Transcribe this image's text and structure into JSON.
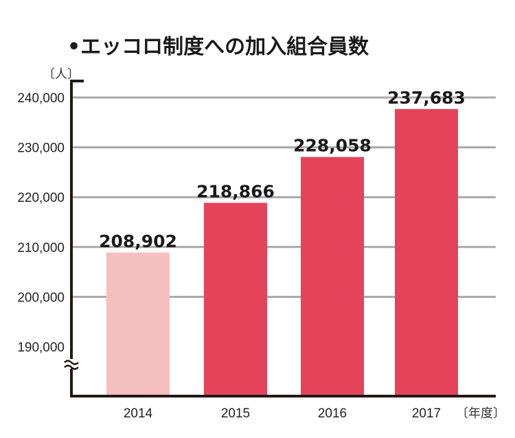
{
  "chart_data": {
    "type": "bar",
    "title": "•エッコロ制度への加入組合員数",
    "ylabel": "〔人〕",
    "xlabel": "〔年度〕",
    "categories": [
      "2014",
      "2015",
      "2016",
      "2017"
    ],
    "values": [
      208902,
      218866,
      228058,
      237683
    ],
    "value_labels": [
      "208,902",
      "218,866",
      "228,058",
      "237,683"
    ],
    "yticks": [
      190000,
      200000,
      210000,
      220000,
      230000,
      240000
    ],
    "ytick_labels": [
      "190,000",
      "200,000",
      "210,000",
      "220,000",
      "230,000",
      "240,000"
    ],
    "ylim": [
      180000,
      242000
    ],
    "axis_break": true,
    "grid": true,
    "bar_colors": [
      "#f5bfbf",
      "#e4435a",
      "#e4435a",
      "#e4435a"
    ]
  }
}
